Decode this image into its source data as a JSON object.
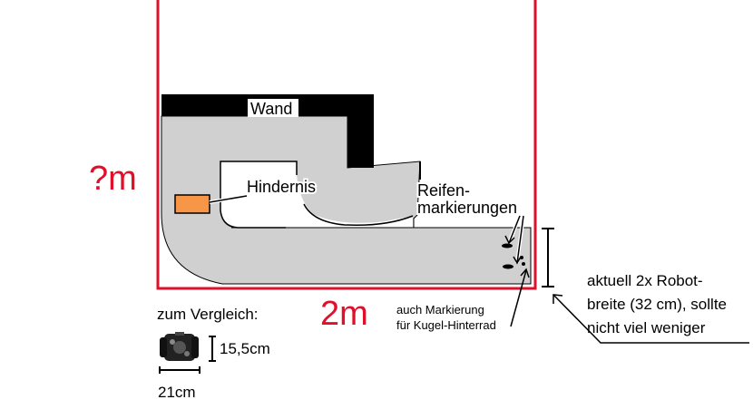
{
  "labels": {
    "wall": "Wand",
    "obstacle": "Hindernis",
    "tire_marks_line1": "Reifen-",
    "tire_marks_line2": "markierungen",
    "unknown_height": "?m",
    "width": "2m",
    "caster_line1": "auch Markierung",
    "caster_line2": "für Kugel-Hinterrad",
    "note_line1": "aktuell 2x Robot-",
    "note_line2": "breite (32 cm), sollte",
    "note_line3": "nicht viel weniger",
    "comparison": "zum Vergleich:",
    "robot_height": "15,5cm",
    "robot_width": "21cm"
  },
  "colors": {
    "border_red": "#e0102b",
    "track_gray": "#d0d0d0",
    "wall_black": "#000000",
    "marker_orange": "#f79646"
  }
}
